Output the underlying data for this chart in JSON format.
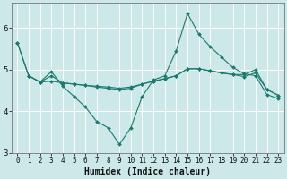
{
  "xlabel": "Humidex (Indice chaleur)",
  "bg_color": "#cde8e8",
  "line_color": "#1a7a6e",
  "grid_color": "#ffffff",
  "xlim": [
    -0.5,
    23.5
  ],
  "ylim": [
    3.0,
    6.6
  ],
  "yticks": [
    3,
    4,
    5,
    6
  ],
  "xticks": [
    0,
    1,
    2,
    3,
    4,
    5,
    6,
    7,
    8,
    9,
    10,
    11,
    12,
    13,
    14,
    15,
    16,
    17,
    18,
    19,
    20,
    21,
    22,
    23
  ],
  "lines": [
    {
      "x": [
        0,
        1,
        2,
        3,
        4,
        5,
        6,
        7,
        8,
        9,
        10,
        11,
        12,
        13,
        14,
        15,
        16,
        17,
        18,
        19,
        20,
        21,
        22,
        23
      ],
      "y": [
        5.65,
        4.85,
        4.7,
        4.95,
        4.6,
        4.35,
        4.1,
        3.75,
        3.6,
        3.2,
        3.6,
        4.35,
        4.75,
        4.85,
        5.45,
        6.35,
        5.85,
        5.55,
        5.3,
        5.05,
        4.9,
        4.85,
        4.4,
        4.3
      ]
    },
    {
      "x": [
        0,
        1,
        2,
        3,
        4,
        5,
        6,
        7,
        8,
        9,
        10,
        11,
        12,
        13,
        14,
        15,
        16,
        17,
        18,
        19,
        20,
        21,
        22,
        23
      ],
      "y": [
        5.65,
        4.85,
        4.7,
        4.85,
        4.68,
        4.65,
        4.62,
        4.58,
        4.55,
        4.52,
        4.55,
        4.65,
        4.72,
        4.78,
        4.85,
        5.02,
        5.02,
        4.97,
        4.92,
        4.88,
        4.83,
        4.92,
        4.52,
        4.38
      ]
    },
    {
      "x": [
        1,
        2,
        3,
        4,
        5,
        6,
        7,
        8,
        9,
        10,
        11,
        12,
        13,
        14,
        15,
        16,
        17,
        18,
        19,
        20,
        21,
        22,
        23
      ],
      "y": [
        4.85,
        4.7,
        4.72,
        4.68,
        4.65,
        4.62,
        4.6,
        4.58,
        4.55,
        4.58,
        4.65,
        4.72,
        4.78,
        4.85,
        5.02,
        5.02,
        4.97,
        4.92,
        4.88,
        4.88,
        5.0,
        4.52,
        4.38
      ]
    }
  ]
}
